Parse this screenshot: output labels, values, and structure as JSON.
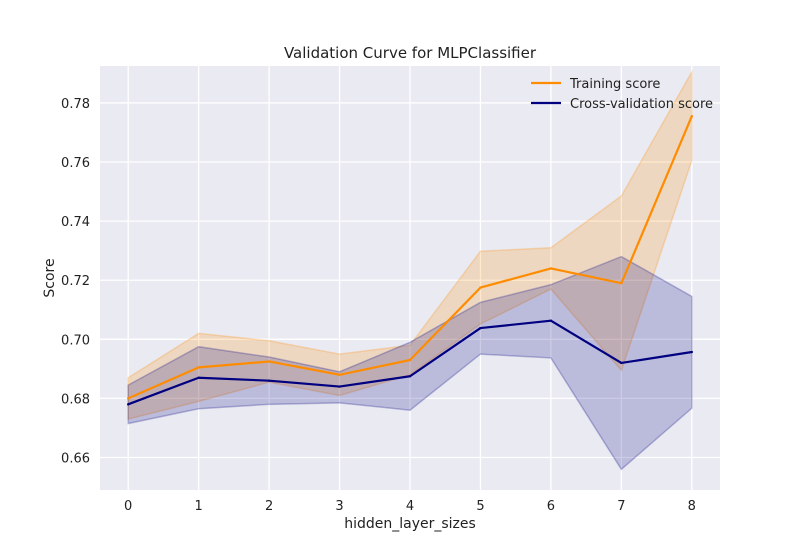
{
  "chart_data": {
    "type": "line",
    "title": "Validation Curve for MLPClassifier",
    "xlabel": "hidden_layer_sizes",
    "ylabel": "Score",
    "x": [
      0,
      1,
      2,
      3,
      4,
      5,
      6,
      7,
      8
    ],
    "xticks": [
      "0",
      "1",
      "2",
      "3",
      "4",
      "5",
      "6",
      "7",
      "8"
    ],
    "xlim": [
      -0.4,
      8.4
    ],
    "ylim": [
      0.649,
      0.7925
    ],
    "yticks": [
      0.66,
      0.68,
      0.7,
      0.72,
      0.74,
      0.76,
      0.78
    ],
    "ytick_labels": [
      "0.66",
      "0.68",
      "0.70",
      "0.72",
      "0.74",
      "0.76",
      "0.78"
    ],
    "grid": true,
    "legend_position": "top-right",
    "series": [
      {
        "name": "Training score",
        "color": "#ff8c00",
        "band_color": "#ff8c00",
        "values": [
          0.68,
          0.6905,
          0.6925,
          0.688,
          0.693,
          0.7175,
          0.724,
          0.719,
          0.7755
        ],
        "upper": [
          0.687,
          0.702,
          0.6995,
          0.695,
          0.698,
          0.7298,
          0.731,
          0.7485,
          0.7905
        ],
        "lower": [
          0.673,
          0.679,
          0.6855,
          0.681,
          0.688,
          0.7052,
          0.717,
          0.6895,
          0.7605
        ]
      },
      {
        "name": "Cross-validation score",
        "color": "#000080",
        "band_color": "#000080",
        "values": [
          0.678,
          0.687,
          0.686,
          0.684,
          0.6875,
          0.7038,
          0.7063,
          0.692,
          0.6957
        ],
        "upper": [
          0.6845,
          0.6975,
          0.694,
          0.689,
          0.699,
          0.7125,
          0.7185,
          0.728,
          0.7145
        ],
        "lower": [
          0.6715,
          0.6765,
          0.678,
          0.6785,
          0.676,
          0.695,
          0.6937,
          0.656,
          0.6767
        ]
      }
    ]
  }
}
